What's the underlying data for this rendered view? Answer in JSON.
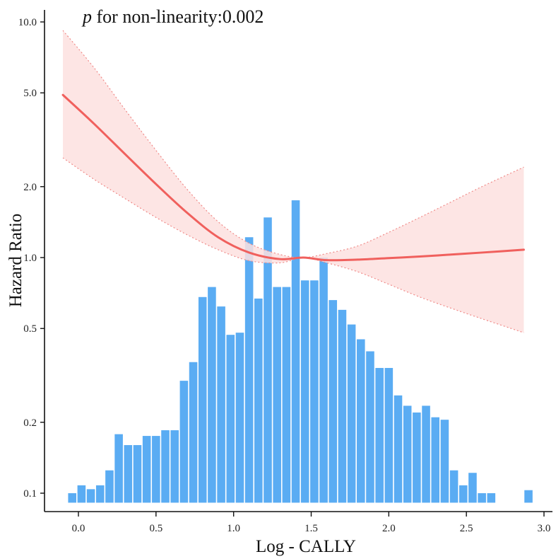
{
  "chart_data": {
    "type": "line",
    "title": "",
    "annotation": {
      "prefix": "p",
      "text": " for non-linearity:0.002"
    },
    "xlabel": "Log - CALLY",
    "ylabel": "Hazard Ratio",
    "xlim": [
      -0.13,
      3.07
    ],
    "ylim_log": [
      0.088,
      12.5
    ],
    "y_scale": "log",
    "x_ticks": [
      0.0,
      0.5,
      1.0,
      1.5,
      2.0,
      2.5,
      3.0
    ],
    "x_tick_labels": [
      "0.0",
      "0.5",
      "1.0",
      "1.5",
      "2.0",
      "2.5",
      "3.0"
    ],
    "y_ticks": [
      0.1,
      0.2,
      0.5,
      1.0,
      2.0,
      5.0,
      10.0
    ],
    "y_tick_labels": [
      "0.1",
      "0.2",
      "0.5",
      "1.0",
      "2.0",
      "5.0",
      "10.0"
    ],
    "colors": {
      "line": "#f0605d",
      "ci_fill": "#fde0df",
      "ci_border": "#f08a88",
      "bars": "#5aacf3",
      "axis": "#111111"
    },
    "series": [
      {
        "name": "Hazard Ratio",
        "x": [
          -0.1,
          0.1,
          0.3,
          0.5,
          0.7,
          0.9,
          1.1,
          1.3,
          1.45,
          1.6,
          1.8,
          2.0,
          2.2,
          2.4,
          2.6,
          2.87
        ],
        "y": [
          4.9,
          3.7,
          2.75,
          2.05,
          1.55,
          1.22,
          1.05,
          0.985,
          1.0,
          0.975,
          0.98,
          0.995,
          1.01,
          1.03,
          1.05,
          1.08
        ],
        "lower": [
          2.65,
          2.15,
          1.78,
          1.48,
          1.25,
          1.08,
          0.97,
          0.95,
          1.0,
          0.95,
          0.87,
          0.77,
          0.68,
          0.61,
          0.55,
          0.48
        ],
        "upper": [
          9.2,
          6.4,
          4.25,
          2.85,
          1.95,
          1.42,
          1.15,
          1.03,
          1.0,
          1.04,
          1.12,
          1.28,
          1.48,
          1.72,
          2.0,
          2.42
        ]
      }
    ],
    "histogram": {
      "bin_width": 0.06,
      "bin_start": -0.07,
      "y_baseline": 0.095,
      "heights": [
        0.1,
        0.108,
        0.104,
        0.108,
        0.125,
        0.178,
        0.16,
        0.16,
        0.175,
        0.175,
        0.185,
        0.185,
        0.3,
        0.36,
        0.68,
        0.75,
        0.62,
        0.47,
        0.48,
        1.22,
        0.67,
        1.48,
        0.75,
        0.75,
        1.75,
        0.8,
        0.8,
        1.0,
        0.66,
        0.6,
        0.52,
        0.45,
        0.4,
        0.34,
        0.34,
        0.26,
        0.235,
        0.22,
        0.235,
        0.21,
        0.205,
        0.125,
        0.108,
        0.122,
        0.1,
        0.1,
        null,
        null,
        null,
        0.103
      ]
    }
  }
}
